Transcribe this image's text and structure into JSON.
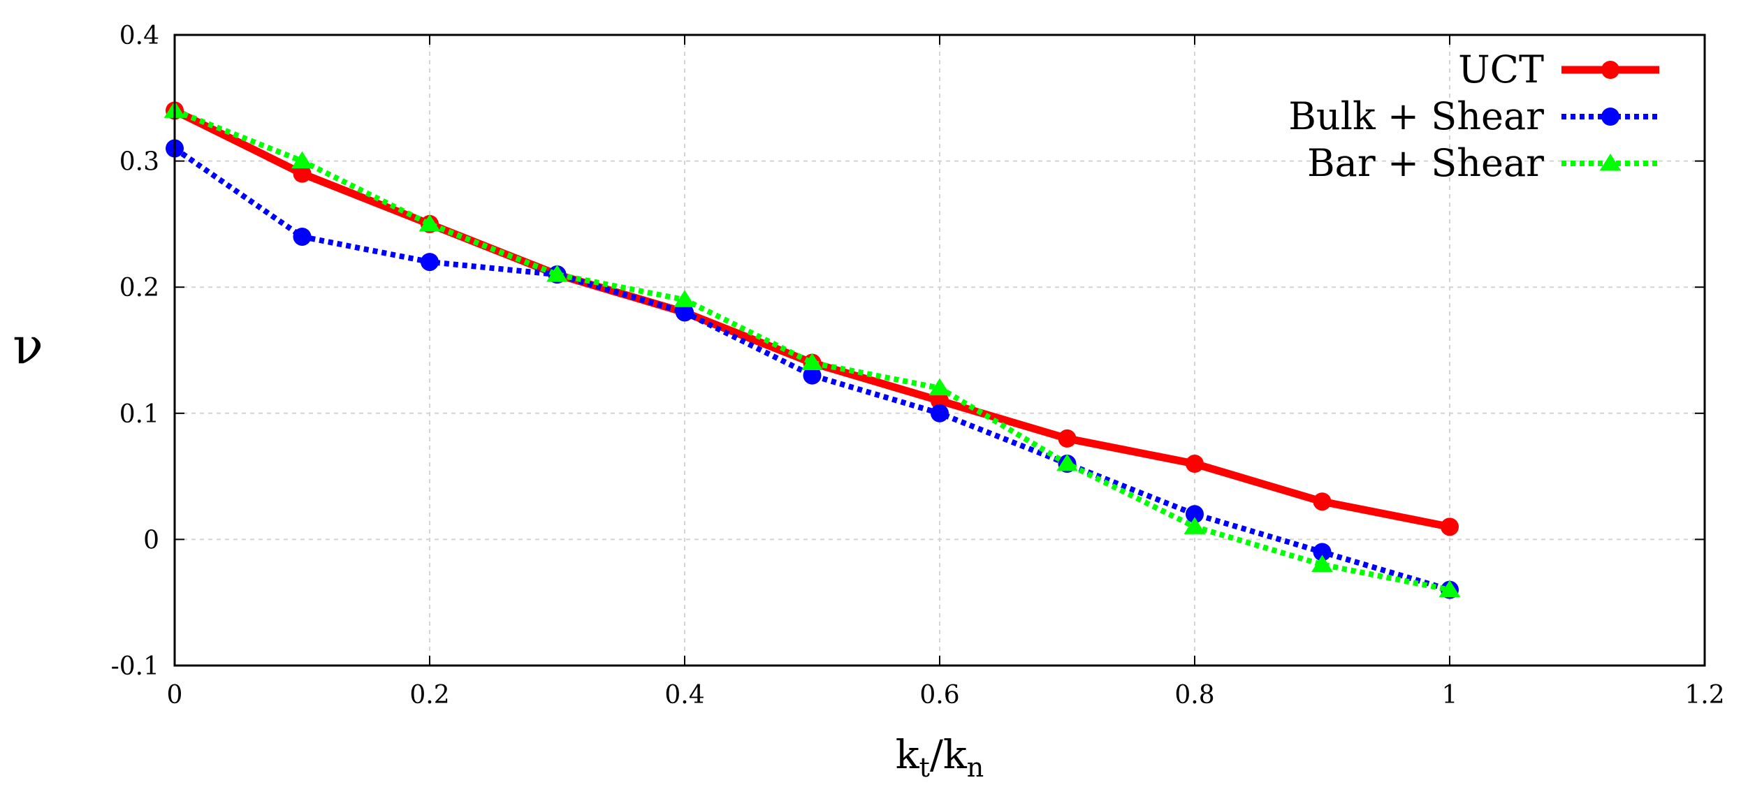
{
  "chart_data": {
    "type": "line",
    "title": "",
    "xlabel": "k",
    "xlabel_parts": {
      "k1": "k",
      "sub1": "t",
      "slash": "/",
      "k2": "k",
      "sub2": "n"
    },
    "ylabel": "ν",
    "xlim": [
      0,
      1.2
    ],
    "ylim": [
      -0.1,
      0.4
    ],
    "xticks": [
      0,
      0.2,
      0.4,
      0.6,
      0.8,
      1,
      1.2
    ],
    "xtick_labels": [
      "0",
      "0.2",
      "0.4",
      "0.6",
      "0.8",
      "1",
      "1.2"
    ],
    "yticks": [
      -0.1,
      0,
      0.1,
      0.2,
      0.3,
      0.4
    ],
    "ytick_labels": [
      "-0.1",
      "0",
      "0.1",
      "0.2",
      "0.3",
      "0.4"
    ],
    "grid": true,
    "legend_position": "top-right",
    "x": [
      0,
      0.1,
      0.2,
      0.3,
      0.4,
      0.5,
      0.6,
      0.7,
      0.8,
      0.9,
      1.0
    ],
    "series": [
      {
        "name": "UCT",
        "color": "#ff0000",
        "line_style": "solid",
        "marker": "circle",
        "values": [
          0.34,
          0.29,
          0.25,
          0.21,
          0.18,
          0.14,
          0.11,
          0.08,
          0.06,
          0.03,
          0.01
        ]
      },
      {
        "name": "Bulk + Shear",
        "color": "#0000ff",
        "line_style": "dotted",
        "marker": "circle",
        "values": [
          0.31,
          0.24,
          0.22,
          0.21,
          0.18,
          0.13,
          0.1,
          0.06,
          0.02,
          -0.01,
          -0.04
        ]
      },
      {
        "name": "Bar + Shear",
        "color": "#00ff00",
        "line_style": "dotted",
        "marker": "triangle",
        "values": [
          0.34,
          0.3,
          0.25,
          0.21,
          0.19,
          0.14,
          0.12,
          0.06,
          0.01,
          -0.02,
          -0.04
        ]
      }
    ]
  }
}
